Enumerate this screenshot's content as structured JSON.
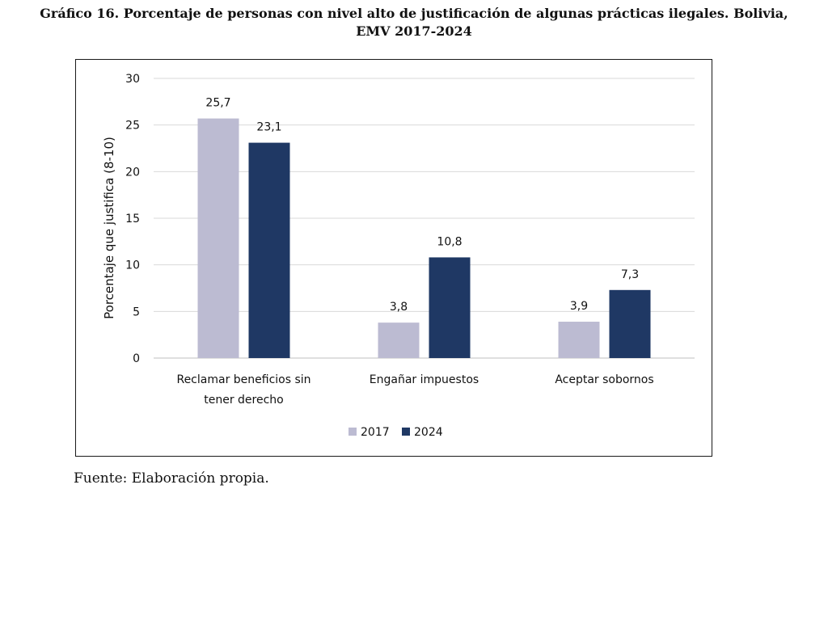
{
  "page": {
    "title_line1": "Gráfico 16. Porcentaje de personas con nivel alto de justificación de algunas prácticas ilegales. Bolivia,",
    "title_line2": "EMV 2017-2024",
    "source": "Fuente: Elaboración propia."
  },
  "chart_data": {
    "type": "bar",
    "title": "Gráfico 16. Porcentaje de personas con nivel alto de justificación de algunas prácticas ilegales. Bolivia, EMV 2017-2024",
    "xlabel": "",
    "ylabel": "Porcentaje que justifica (8-10)",
    "ylim": [
      0,
      30
    ],
    "yticks": [
      0,
      5,
      10,
      15,
      20,
      25,
      30
    ],
    "grid": true,
    "legend_position": "bottom-center",
    "categories": [
      [
        "Reclamar beneficios sin",
        "tener derecho"
      ],
      [
        "Engañar impuestos"
      ],
      [
        "Aceptar sobornos"
      ]
    ],
    "series": [
      {
        "name": "2017",
        "color": "#bcbbd2",
        "values": [
          25.7,
          3.8,
          3.9
        ],
        "labels": [
          "25,7",
          "3,8",
          "3,9"
        ]
      },
      {
        "name": "2024",
        "color": "#1f3864",
        "values": [
          23.1,
          10.8,
          7.3
        ],
        "labels": [
          "23,1",
          "10,8",
          "7,3"
        ]
      }
    ]
  }
}
